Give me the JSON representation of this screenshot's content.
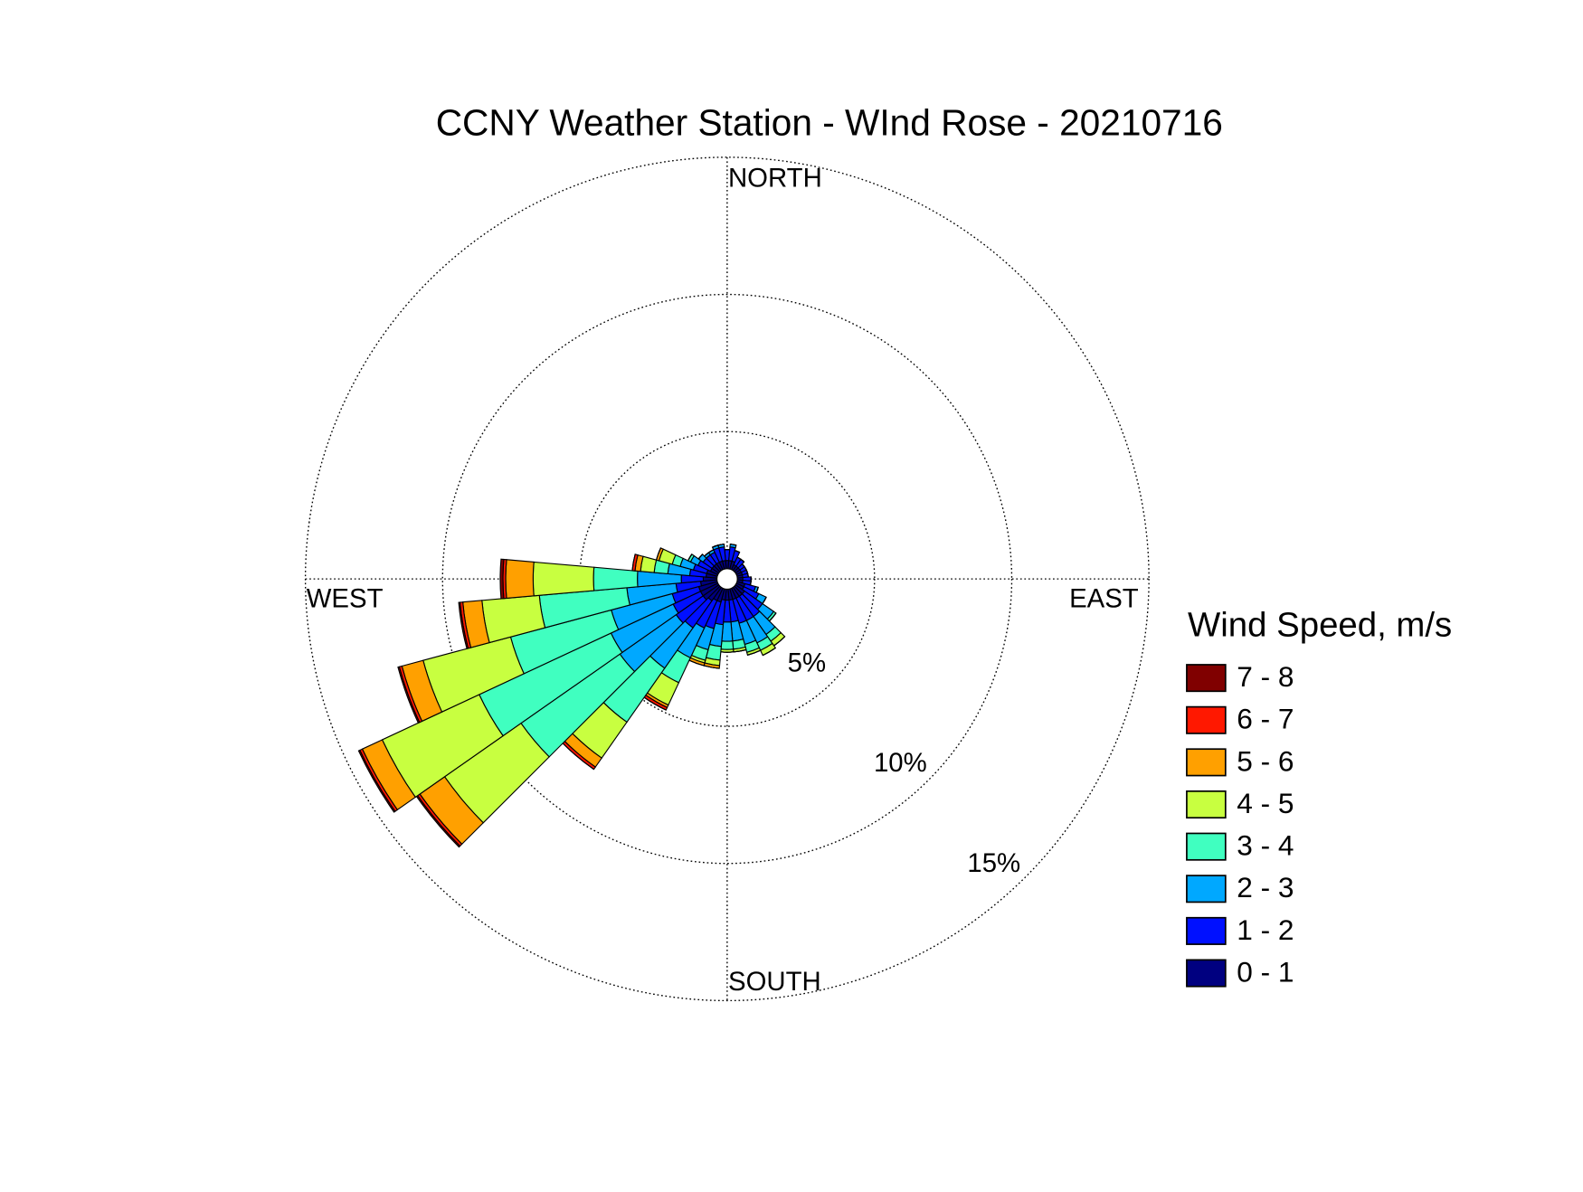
{
  "chart_data": {
    "type": "windrose",
    "title": "CCNY Weather Station - WInd Rose - 20210716",
    "direction_labels": {
      "north": "NORTH",
      "east": "EAST",
      "south": "SOUTH",
      "west": "WEST"
    },
    "legend_title": "Wind Speed, m/s",
    "sector_width": 10,
    "x": [
      0,
      10,
      20,
      30,
      40,
      50,
      60,
      70,
      80,
      90,
      100,
      110,
      120,
      130,
      140,
      150,
      160,
      170,
      180,
      190,
      200,
      210,
      220,
      230,
      240,
      250,
      260,
      270,
      280,
      290,
      300,
      310,
      320,
      330,
      340,
      350
    ],
    "rlim": [
      0,
      15
    ],
    "rticks": [
      {
        "value": 5,
        "label": "5%"
      },
      {
        "value": 10,
        "label": "10%"
      },
      {
        "value": 15,
        "label": "15%"
      }
    ],
    "series": [
      {
        "name": "0 - 1",
        "color": "#000080",
        "values": [
          0.3,
          0.3,
          0.3,
          0.2,
          0.2,
          0.2,
          0.2,
          0.2,
          0.2,
          0.2,
          0.2,
          0.3,
          0.3,
          0.4,
          0.4,
          0.4,
          0.4,
          0.4,
          0.4,
          0.4,
          0.5,
          0.5,
          0.6,
          0.7,
          0.7,
          0.7,
          0.6,
          0.5,
          0.4,
          0.4,
          0.3,
          0.3,
          0.3,
          0.3,
          0.3,
          0.3
        ]
      },
      {
        "name": "1 - 2",
        "color": "#0010ff",
        "values": [
          0.4,
          0.5,
          0.4,
          0.3,
          0.3,
          0.2,
          0.2,
          0.2,
          0.2,
          0.3,
          0.3,
          0.4,
          0.6,
          0.8,
          0.9,
          0.9,
          0.9,
          0.8,
          0.8,
          0.9,
          1.0,
          1.1,
          1.2,
          1.2,
          1.1,
          1.0,
          0.9,
          0.8,
          0.6,
          0.5,
          0.5,
          0.4,
          0.4,
          0.4,
          0.5,
          0.5
        ]
      },
      {
        "name": "2 - 3",
        "color": "#00a8ff",
        "values": [
          0,
          0.1,
          0,
          0,
          0,
          0,
          0,
          0,
          0,
          0,
          0,
          0.1,
          0.3,
          0.5,
          0.8,
          0.9,
          0.8,
          0.7,
          0.7,
          0.8,
          0.8,
          1.2,
          1.8,
          2.5,
          2.5,
          2.3,
          1.8,
          1.6,
          0.8,
          0.5,
          0.3,
          0.2,
          0.1,
          0.1,
          0.1,
          0.1
        ]
      },
      {
        "name": "3 - 4",
        "color": "#40ffc0",
        "values": [
          0,
          0,
          0,
          0,
          0,
          0,
          0,
          0,
          0,
          0,
          0,
          0,
          0,
          0.1,
          0.3,
          0.3,
          0.3,
          0.3,
          0.3,
          0.5,
          0.4,
          1.0,
          2.4,
          4.4,
          5.3,
          3.8,
          3.2,
          1.6,
          0.5,
          0.3,
          0.1,
          0,
          0,
          0,
          0,
          0
        ]
      },
      {
        "name": "4 - 5",
        "color": "#c8ff40",
        "values": [
          0,
          0,
          0,
          0,
          0,
          0,
          0,
          0,
          0,
          0,
          0,
          0,
          0,
          0,
          0.2,
          0.2,
          0.1,
          0.1,
          0.1,
          0.2,
          0.1,
          0.9,
          1.6,
          3.4,
          3.9,
          3.3,
          2.1,
          2.2,
          0.5,
          0.5,
          0,
          0,
          0,
          0,
          0,
          0
        ]
      },
      {
        "name": "5 - 6",
        "color": "#ffa000",
        "values": [
          0,
          0,
          0,
          0,
          0,
          0,
          0,
          0,
          0,
          0,
          0,
          0,
          0,
          0,
          0,
          0,
          0,
          0,
          0,
          0.1,
          0.1,
          0.1,
          0.4,
          1.1,
          0.8,
          0.8,
          0.7,
          1.0,
          0.2,
          0.1,
          0,
          0,
          0,
          0,
          0,
          0
        ]
      },
      {
        "name": "6 - 7",
        "color": "#ff1800",
        "values": [
          0,
          0,
          0,
          0,
          0,
          0,
          0,
          0,
          0,
          0,
          0,
          0,
          0,
          0,
          0,
          0,
          0,
          0,
          0,
          0,
          0,
          0.1,
          0.1,
          0.1,
          0.1,
          0.1,
          0.1,
          0.1,
          0.1,
          0,
          0,
          0,
          0,
          0,
          0,
          0
        ]
      },
      {
        "name": "7 - 8",
        "color": "#800000",
        "values": [
          0,
          0,
          0,
          0,
          0,
          0,
          0,
          0,
          0,
          0,
          0,
          0,
          0,
          0,
          0,
          0,
          0,
          0,
          0,
          0,
          0,
          0,
          0,
          0.05,
          0.05,
          0.05,
          0.05,
          0.1,
          0,
          0,
          0,
          0,
          0,
          0,
          0,
          0
        ]
      }
    ]
  }
}
